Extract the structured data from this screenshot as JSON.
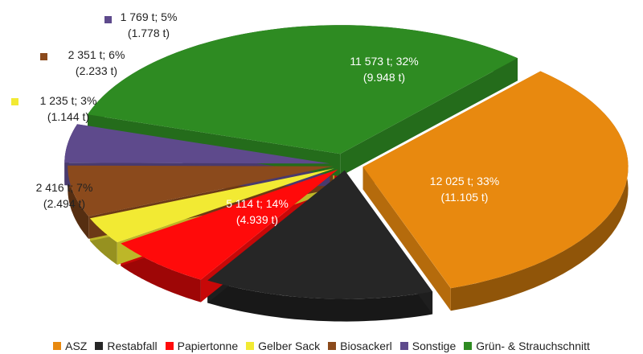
{
  "chart_data": {
    "type": "pie",
    "style": "3d-exploded",
    "series": [
      {
        "name": "ASZ",
        "value": 12025,
        "label_line1": "12 025 t; 33%",
        "label_line2": "(11.105 t)",
        "color": "#E8890F",
        "label_inside": true,
        "label_color": "#ffffff"
      },
      {
        "name": "Restabfall",
        "value": 5114,
        "label_line1": "5 114 t; 14%",
        "label_line2": "(4.939 t)",
        "color": "#262626",
        "label_inside": true,
        "label_color": "#ffffff"
      },
      {
        "name": "Papiertonne",
        "value": 2416,
        "label_line1": "2 416 t; 7%",
        "label_line2": "(2.494 t)",
        "color": "#FF0A0A",
        "label_inside": false,
        "label_color": "#222222"
      },
      {
        "name": "Gelber Sack",
        "value": 1235,
        "label_line1": "1 235 t; 3%",
        "label_line2": "(1.144 t)",
        "color": "#F2EA33",
        "label_inside": false,
        "label_color": "#222222"
      },
      {
        "name": "Biosackerl",
        "value": 2351,
        "label_line1": "2 351 t; 6%",
        "label_line2": "(2.233 t)",
        "color": "#8B4A1C",
        "label_inside": false,
        "label_color": "#222222"
      },
      {
        "name": "Sonstige",
        "value": 1769,
        "label_line1": "1 769 t; 5%",
        "label_line2": "(1.778 t)",
        "color": "#5E4A8C",
        "label_inside": false,
        "label_color": "#222222"
      },
      {
        "name": "Grün- & Strauchschnitt",
        "value": 11573,
        "label_line1": "11 573 t; 32%",
        "label_line2": "(9.948 t)",
        "color": "#2E8B22",
        "label_inside": true,
        "label_color": "#ffffff"
      }
    ],
    "legend": {
      "position": "bottom"
    }
  }
}
